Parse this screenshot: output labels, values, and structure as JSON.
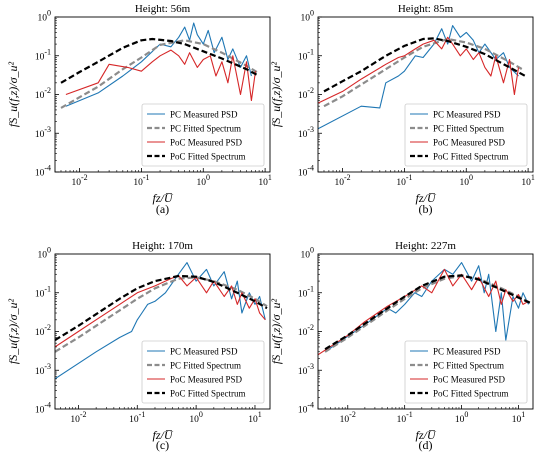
{
  "colors": {
    "pc_measured": "#1f77b4",
    "pc_fitted": "#8c8c8c",
    "poc_measured": "#d62728",
    "poc_fitted": "#000000"
  },
  "legend_labels": [
    "PC Measured PSD",
    "PC Fitted Spectrum",
    "PoC Measured PSD",
    "PoC Fitted Spectrum"
  ],
  "chart_data": [
    {
      "type": "line",
      "panel_label": "(a)",
      "title": "Height: 56m",
      "xlabel": "fz/U̅",
      "ylabel": "fS_u(f,z)/σ_u²",
      "xscale": "log",
      "yscale": "log",
      "xlim": [
        0.004,
        12
      ],
      "ylim": [
        0.0001,
        1
      ],
      "x_ticks": [
        "10^-2",
        "10^-1",
        "10^0",
        "10^1"
      ],
      "y_ticks": [
        "10^-4",
        "10^-3",
        "10^-2",
        "10^-1",
        "10^0"
      ],
      "legend": "lower-right",
      "series": [
        {
          "name": "PC Measured PSD",
          "x": [
            0.006,
            0.02,
            0.05,
            0.1,
            0.2,
            0.3,
            0.4,
            0.5,
            0.6,
            0.7,
            0.8,
            1.0,
            1.2,
            1.5,
            2.0,
            2.5,
            3.0,
            4.0,
            5.0,
            6.0
          ],
          "y": [
            0.005,
            0.011,
            0.03,
            0.07,
            0.2,
            0.17,
            0.3,
            0.55,
            0.25,
            0.7,
            0.35,
            0.2,
            0.45,
            0.12,
            0.3,
            0.08,
            0.15,
            0.05,
            0.1,
            0.03
          ]
        },
        {
          "name": "PC Fitted Spectrum",
          "x": [
            0.005,
            0.01,
            0.02,
            0.05,
            0.1,
            0.2,
            0.5,
            1,
            2,
            5,
            8
          ],
          "y": [
            0.0045,
            0.0085,
            0.016,
            0.045,
            0.09,
            0.19,
            0.25,
            0.2,
            0.12,
            0.055,
            0.035
          ]
        },
        {
          "name": "PoC Measured PSD",
          "x": [
            0.006,
            0.02,
            0.03,
            0.06,
            0.1,
            0.15,
            0.2,
            0.3,
            0.4,
            0.5,
            0.6,
            0.8,
            1.0,
            1.3,
            1.6,
            2.0,
            2.5,
            3.0,
            4.0,
            5.0,
            6.0,
            7.0
          ],
          "y": [
            0.01,
            0.02,
            0.06,
            0.05,
            0.04,
            0.07,
            0.1,
            0.14,
            0.1,
            0.06,
            0.12,
            0.05,
            0.08,
            0.1,
            0.03,
            0.07,
            0.02,
            0.1,
            0.01,
            0.07,
            0.007,
            0.04
          ]
        },
        {
          "name": "PoC Fitted Spectrum",
          "x": [
            0.005,
            0.01,
            0.02,
            0.05,
            0.1,
            0.15,
            0.3,
            0.5,
            1,
            2,
            5,
            8
          ],
          "y": [
            0.02,
            0.038,
            0.07,
            0.16,
            0.25,
            0.27,
            0.24,
            0.2,
            0.13,
            0.085,
            0.045,
            0.03
          ]
        }
      ]
    },
    {
      "type": "line",
      "panel_label": "(b)",
      "title": "Height: 85m",
      "xlabel": "fz/U̅",
      "ylabel": "fS_u(f,z)/σ_u²",
      "xscale": "log",
      "yscale": "log",
      "xlim": [
        0.004,
        12
      ],
      "ylim": [
        0.0001,
        1
      ],
      "x_ticks": [
        "10^-2",
        "10^-1",
        "10^0",
        "10^1"
      ],
      "y_ticks": [
        "10^-4",
        "10^-3",
        "10^-2",
        "10^-1",
        "10^0"
      ],
      "legend": "lower-right",
      "series": [
        {
          "name": "PC Measured PSD",
          "x": [
            0.004,
            0.02,
            0.04,
            0.05,
            0.08,
            0.1,
            0.15,
            0.2,
            0.3,
            0.4,
            0.5,
            0.6,
            0.8,
            1.0,
            1.3,
            1.6,
            2.0,
            3.0,
            4.0,
            5.0,
            7.0
          ],
          "y": [
            0.0013,
            0.005,
            0.0045,
            0.02,
            0.03,
            0.04,
            0.1,
            0.09,
            0.2,
            0.5,
            0.2,
            0.6,
            0.3,
            0.4,
            0.25,
            0.12,
            0.2,
            0.08,
            0.12,
            0.05,
            0.03
          ]
        },
        {
          "name": "PC Fitted Spectrum",
          "x": [
            0.005,
            0.01,
            0.02,
            0.05,
            0.1,
            0.2,
            0.5,
            1,
            2,
            5,
            8
          ],
          "y": [
            0.005,
            0.009,
            0.018,
            0.045,
            0.09,
            0.17,
            0.27,
            0.22,
            0.15,
            0.07,
            0.045
          ]
        },
        {
          "name": "PoC Measured PSD",
          "x": [
            0.004,
            0.01,
            0.02,
            0.05,
            0.08,
            0.1,
            0.15,
            0.2,
            0.3,
            0.4,
            0.5,
            0.6,
            0.8,
            1.0,
            1.3,
            1.6,
            2.0,
            2.5,
            3.0,
            4.0,
            5.0,
            6.0,
            7.0
          ],
          "y": [
            0.006,
            0.012,
            0.025,
            0.06,
            0.09,
            0.1,
            0.15,
            0.2,
            0.25,
            0.15,
            0.3,
            0.2,
            0.1,
            0.15,
            0.08,
            0.12,
            0.05,
            0.03,
            0.1,
            0.02,
            0.08,
            0.01,
            0.05
          ]
        },
        {
          "name": "PoC Fitted Spectrum",
          "x": [
            0.005,
            0.01,
            0.02,
            0.05,
            0.1,
            0.2,
            0.3,
            0.5,
            1,
            2,
            5,
            9
          ],
          "y": [
            0.012,
            0.022,
            0.04,
            0.1,
            0.18,
            0.27,
            0.28,
            0.24,
            0.17,
            0.11,
            0.05,
            0.03
          ]
        }
      ]
    },
    {
      "type": "line",
      "panel_label": "(c)",
      "title": "Height: 170m",
      "xlabel": "fz/U̅",
      "ylabel": "fS_u(f,z)/σ_u²",
      "xscale": "log",
      "yscale": "log",
      "xlim": [
        0.004,
        18
      ],
      "ylim": [
        0.0001,
        1
      ],
      "x_ticks": [
        "10^-2",
        "10^-1",
        "10^0",
        "10^1"
      ],
      "y_ticks": [
        "10^-4",
        "10^-3",
        "10^-2",
        "10^-1",
        "10^0"
      ],
      "legend": "lower-right",
      "series": [
        {
          "name": "PC Measured PSD",
          "x": [
            0.004,
            0.02,
            0.05,
            0.08,
            0.1,
            0.12,
            0.15,
            0.2,
            0.3,
            0.5,
            0.7,
            1.0,
            1.5,
            2.0,
            3.0,
            4.0,
            5.0,
            6.0,
            8.0,
            10,
            12,
            15
          ],
          "y": [
            0.0006,
            0.003,
            0.007,
            0.01,
            0.02,
            0.03,
            0.05,
            0.06,
            0.1,
            0.3,
            0.6,
            0.2,
            0.4,
            0.15,
            0.35,
            0.07,
            0.2,
            0.03,
            0.1,
            0.05,
            0.08,
            0.02
          ]
        },
        {
          "name": "PC Fitted Spectrum",
          "x": [
            0.004,
            0.01,
            0.02,
            0.05,
            0.1,
            0.2,
            0.5,
            1,
            2,
            5,
            10,
            16
          ],
          "y": [
            0.003,
            0.007,
            0.014,
            0.035,
            0.07,
            0.13,
            0.23,
            0.25,
            0.2,
            0.12,
            0.07,
            0.045
          ]
        },
        {
          "name": "PoC Measured PSD",
          "x": [
            0.004,
            0.01,
            0.02,
            0.05,
            0.1,
            0.2,
            0.3,
            0.5,
            0.7,
            1.0,
            1.5,
            2.0,
            3.0,
            4.0,
            5.0,
            6.0,
            8.0,
            10,
            12,
            15
          ],
          "y": [
            0.004,
            0.01,
            0.02,
            0.05,
            0.1,
            0.15,
            0.2,
            0.28,
            0.15,
            0.25,
            0.1,
            0.2,
            0.08,
            0.15,
            0.05,
            0.1,
            0.04,
            0.07,
            0.03,
            0.02
          ]
        },
        {
          "name": "PoC Fitted Spectrum",
          "x": [
            0.004,
            0.01,
            0.02,
            0.05,
            0.1,
            0.2,
            0.5,
            1,
            2,
            5,
            10,
            16
          ],
          "y": [
            0.006,
            0.014,
            0.028,
            0.07,
            0.13,
            0.2,
            0.27,
            0.26,
            0.19,
            0.1,
            0.06,
            0.04
          ]
        }
      ]
    },
    {
      "type": "line",
      "panel_label": "(d)",
      "title": "Height: 227m",
      "xlabel": "fz/U̅",
      "ylabel": "fS_u(f,z)/σ_u²",
      "xscale": "log",
      "yscale": "log",
      "xlim": [
        0.003,
        18
      ],
      "ylim": [
        0.0001,
        1
      ],
      "x_ticks": [
        "10^-2",
        "10^-1",
        "10^0",
        "10^1"
      ],
      "y_ticks": [
        "10^-4",
        "10^-3",
        "10^-2",
        "10^-1",
        "10^0"
      ],
      "legend": "lower-right",
      "series": [
        {
          "name": "PC Measured PSD",
          "x": [
            0.004,
            0.02,
            0.05,
            0.07,
            0.1,
            0.15,
            0.2,
            0.3,
            0.5,
            0.7,
            1.0,
            1.5,
            2.0,
            2.5,
            3.0,
            4.0,
            5.0,
            6.0,
            8.0,
            10,
            12,
            15
          ],
          "y": [
            0.003,
            0.015,
            0.04,
            0.03,
            0.05,
            0.1,
            0.08,
            0.2,
            0.4,
            0.3,
            0.6,
            0.2,
            0.5,
            0.1,
            0.3,
            0.01,
            0.1,
            0.006,
            0.08,
            0.04,
            0.1,
            0.05
          ]
        },
        {
          "name": "PC Fitted Spectrum",
          "x": [
            0.004,
            0.01,
            0.02,
            0.05,
            0.1,
            0.2,
            0.5,
            1,
            2,
            5,
            10,
            16
          ],
          "y": [
            0.003,
            0.007,
            0.014,
            0.035,
            0.07,
            0.13,
            0.23,
            0.27,
            0.23,
            0.13,
            0.08,
            0.055
          ]
        },
        {
          "name": "PoC Measured PSD",
          "x": [
            0.003,
            0.01,
            0.02,
            0.05,
            0.1,
            0.2,
            0.3,
            0.5,
            0.7,
            1.0,
            1.5,
            2.0,
            3.0,
            4.0,
            5.0,
            6.0,
            8.0,
            10,
            12,
            15
          ],
          "y": [
            0.0025,
            0.008,
            0.018,
            0.045,
            0.08,
            0.15,
            0.1,
            0.4,
            0.15,
            0.3,
            0.12,
            0.25,
            0.08,
            0.2,
            0.05,
            0.12,
            0.06,
            0.09,
            0.05,
            0.06
          ]
        },
        {
          "name": "PoC Fitted Spectrum",
          "x": [
            0.004,
            0.01,
            0.02,
            0.05,
            0.1,
            0.2,
            0.5,
            1,
            2,
            5,
            10,
            16
          ],
          "y": [
            0.0035,
            0.008,
            0.016,
            0.04,
            0.08,
            0.15,
            0.26,
            0.28,
            0.22,
            0.12,
            0.075,
            0.055
          ]
        }
      ]
    }
  ]
}
